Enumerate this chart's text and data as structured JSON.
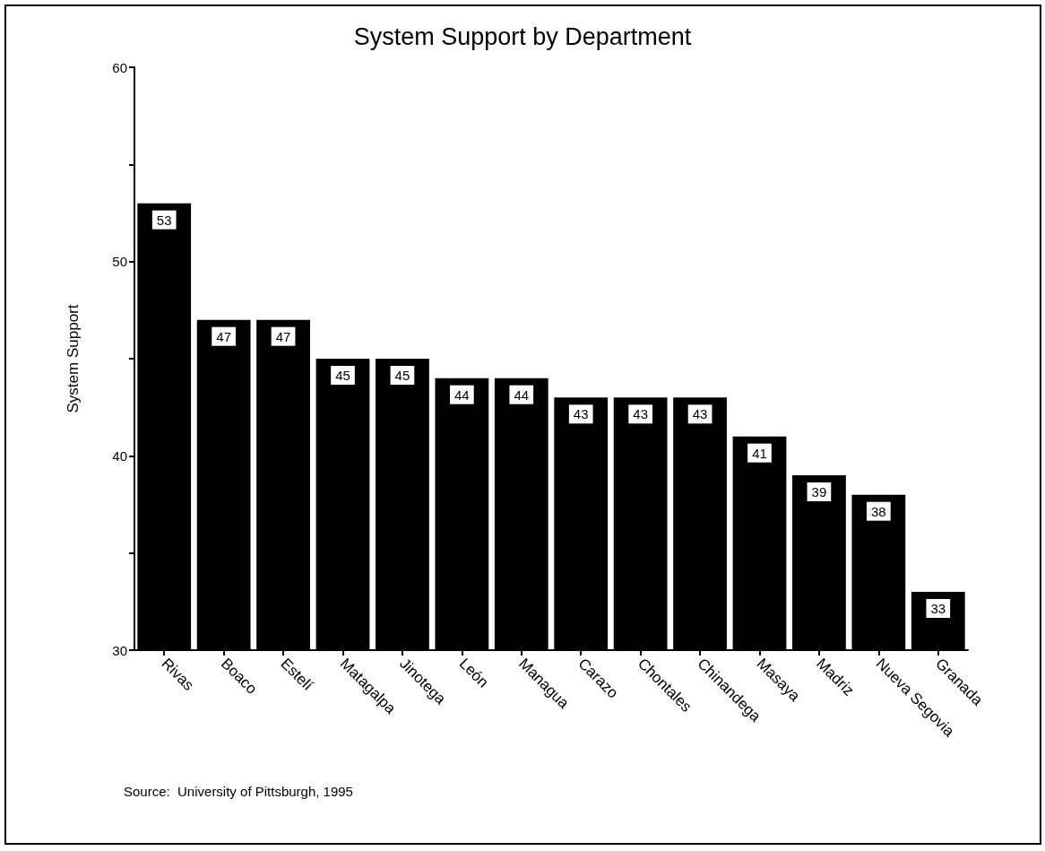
{
  "chart_data": {
    "type": "bar",
    "title": "System Support by Department",
    "ylabel": "System Support",
    "categories": [
      "Rivas",
      "Boaco",
      "Estelí",
      "Matagalpa",
      "Jinotega",
      "León",
      "Managua",
      "Carazo",
      "Chontales",
      "Chinandega",
      "Masaya",
      "Madriz",
      "Nueva Segovia",
      "Granada"
    ],
    "values": [
      53,
      47,
      47,
      45,
      45,
      44,
      44,
      43,
      43,
      43,
      41,
      39,
      38,
      33
    ],
    "color": "#000000",
    "ylim": [
      30,
      60
    ],
    "yticks": [
      30,
      {
        "value": 35,
        "label": null
      },
      40,
      {
        "value": 45,
        "label": null
      },
      50,
      {
        "value": 55,
        "label": null
      },
      60
    ],
    "grid": false,
    "data_labels": true,
    "annotations": [
      "Source:  University of Pittsburgh, 1995"
    ]
  }
}
